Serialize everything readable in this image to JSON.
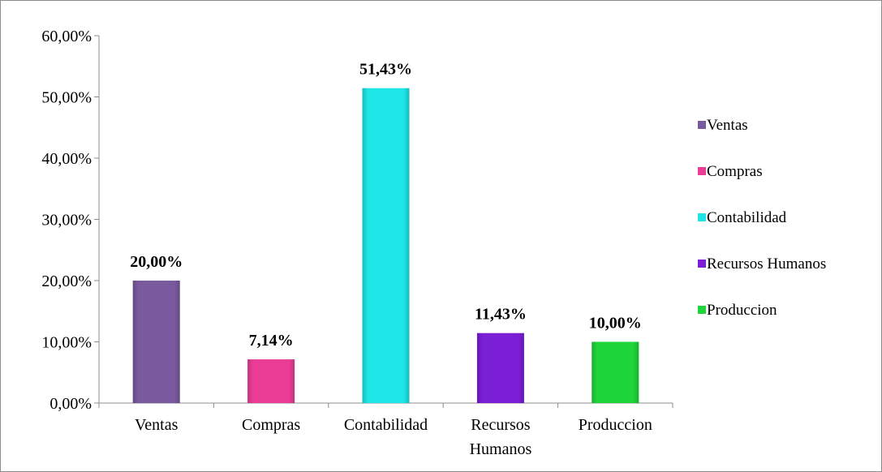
{
  "chart_data": {
    "type": "bar",
    "categories": [
      "Ventas",
      "Compras",
      "Contabilidad",
      "Recursos Humanos",
      "Produccion"
    ],
    "category_labels": [
      [
        "Ventas"
      ],
      [
        "Compras"
      ],
      [
        "Contabilidad"
      ],
      [
        "Recursos",
        "Humanos"
      ],
      [
        "Produccion"
      ]
    ],
    "values": [
      20.0,
      7.14,
      51.43,
      11.43,
      10.0
    ],
    "data_labels": [
      "20,00%",
      "7,14%",
      "51,43%",
      "11,43%",
      "10,00%"
    ],
    "colors": [
      "#7a5a9e",
      "#ec3d96",
      "#1ee6e6",
      "#7a1fd6",
      "#1ed63a"
    ],
    "y_ticks": [
      "0,00%",
      "10,00%",
      "20,00%",
      "30,00%",
      "40,00%",
      "50,00%",
      "60,00%"
    ],
    "ylim": [
      0,
      60
    ],
    "y_tick_step": 10,
    "grid": false,
    "legend": {
      "position": "right",
      "items": [
        "Ventas",
        "Compras",
        "Contabilidad",
        "Recursos Humanos",
        "Produccion"
      ]
    },
    "title": "",
    "xlabel": "",
    "ylabel": ""
  }
}
